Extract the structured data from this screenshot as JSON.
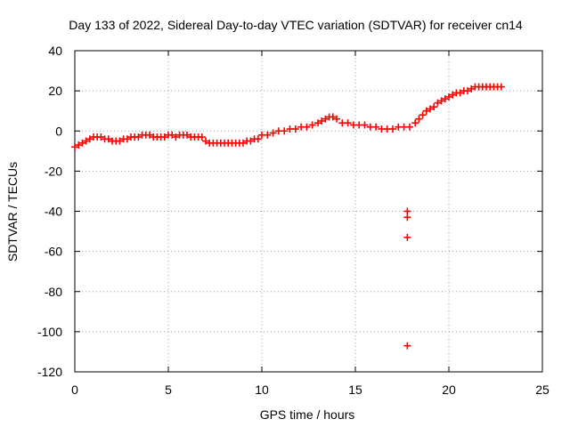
{
  "chart_data": {
    "type": "scatter",
    "title": "Day 133 of 2022, Sidereal Day-to-day VTEC variation (SDTVAR) for receiver cn14",
    "xlabel": "GPS time / hours",
    "ylabel": "SDTVAR / TECUs",
    "xlim": [
      0,
      25
    ],
    "ylim": [
      -120,
      40
    ],
    "x_ticks": [
      0,
      5,
      10,
      15,
      20,
      25
    ],
    "y_ticks": [
      -120,
      -100,
      -80,
      -60,
      -40,
      -20,
      0,
      20,
      40
    ],
    "grid": true,
    "marker": "+",
    "color": "#ff0000",
    "series": [
      {
        "name": "SDTVAR",
        "x": [
          0.0,
          0.2,
          0.4,
          0.6,
          0.8,
          1.0,
          1.2,
          1.4,
          1.6,
          1.8,
          2.0,
          2.2,
          2.4,
          2.6,
          2.8,
          3.0,
          3.2,
          3.4,
          3.6,
          3.8,
          4.0,
          4.2,
          4.4,
          4.6,
          4.8,
          5.0,
          5.2,
          5.4,
          5.6,
          5.8,
          6.0,
          6.2,
          6.4,
          6.6,
          6.8,
          7.0,
          7.2,
          7.4,
          7.6,
          7.8,
          8.0,
          8.2,
          8.4,
          8.6,
          8.8,
          9.0,
          9.2,
          9.4,
          9.6,
          9.8,
          10.0,
          10.3,
          10.6,
          10.9,
          11.2,
          11.5,
          11.8,
          12.1,
          12.4,
          12.7,
          13.0,
          13.2,
          13.4,
          13.6,
          13.8,
          14.0,
          14.3,
          14.6,
          14.9,
          15.2,
          15.5,
          15.8,
          16.1,
          16.4,
          16.7,
          17.0,
          17.3,
          17.6,
          17.9,
          18.2,
          18.4,
          18.6,
          18.8,
          19.0,
          19.2,
          19.4,
          19.6,
          19.8,
          20.0,
          20.2,
          20.4,
          20.6,
          20.8,
          21.0,
          21.2,
          21.4,
          21.6,
          21.8,
          22.0,
          22.2,
          22.4,
          22.6,
          22.8,
          17.78,
          17.78,
          17.78,
          17.78
        ],
        "y": [
          -8,
          -7,
          -6,
          -5,
          -4,
          -3,
          -3,
          -3,
          -4,
          -4,
          -5,
          -5,
          -5,
          -4,
          -4,
          -3,
          -3,
          -3,
          -2,
          -2,
          -2,
          -3,
          -3,
          -3,
          -3,
          -2,
          -2,
          -3,
          -2,
          -2,
          -2,
          -3,
          -3,
          -3,
          -3,
          -5,
          -6,
          -6,
          -6,
          -6,
          -6,
          -6,
          -6,
          -6,
          -6,
          -6,
          -5,
          -5,
          -4,
          -4,
          -2,
          -2,
          -1,
          0,
          0,
          1,
          1,
          2,
          2,
          3,
          4,
          5,
          6,
          7,
          7,
          6,
          4,
          4,
          3,
          3,
          3,
          2,
          2,
          1,
          1,
          1,
          2,
          2,
          2,
          4,
          6,
          8,
          10,
          11,
          12,
          14,
          15,
          16,
          17,
          18,
          19,
          19,
          20,
          20,
          21,
          22,
          22,
          22,
          22,
          22,
          22,
          22,
          22,
          -40,
          -43,
          -53,
          -107
        ]
      }
    ]
  }
}
